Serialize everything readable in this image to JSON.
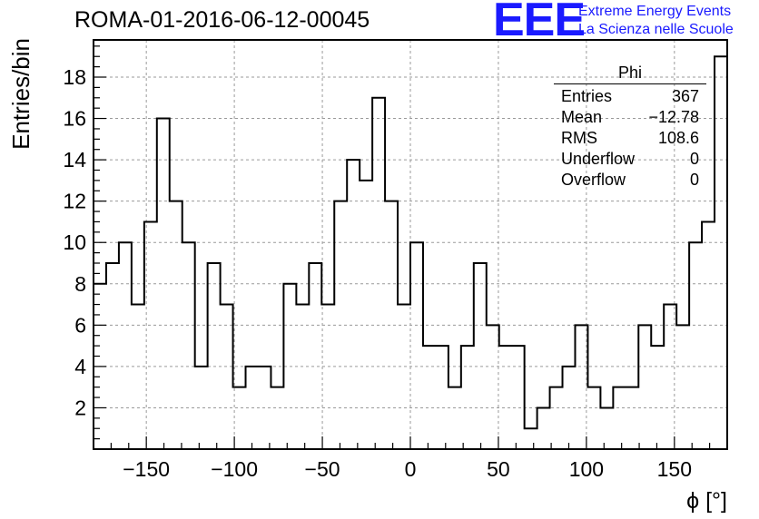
{
  "header": {
    "title": "ROMA-01-2016-06-12-00045",
    "logo": "EEE",
    "logo_line1": "Extreme Energy Events",
    "logo_line2": "La Scienza nelle Scuole"
  },
  "stats": {
    "title": "Phi",
    "rows": [
      {
        "label": "Entries",
        "value": "367"
      },
      {
        "label": "Mean",
        "value": "−12.78"
      },
      {
        "label": "RMS",
        "value": "108.6"
      },
      {
        "label": "Underflow",
        "value": "0"
      },
      {
        "label": "Overflow",
        "value": "0"
      }
    ]
  },
  "chart_data": {
    "type": "histogram",
    "title": "ROMA-01-2016-06-12-00045",
    "xlabel": "ϕ [°]",
    "ylabel": "Entries/bin",
    "xlim": [
      -180,
      180
    ],
    "ylim": [
      0,
      19.8
    ],
    "grid": true,
    "bin_width": 7.2,
    "bin_edges_start": -180,
    "values": [
      8,
      9,
      10,
      7,
      11,
      16,
      12,
      10,
      4,
      9,
      7,
      3,
      4,
      4,
      3,
      8,
      7,
      9,
      7,
      12,
      14,
      13,
      17,
      12,
      7,
      10,
      5,
      5,
      3,
      5,
      9,
      6,
      5,
      5,
      1,
      2,
      3,
      4,
      6,
      3,
      2,
      3,
      3,
      6,
      5,
      7,
      6,
      10,
      11,
      19
    ],
    "xticks": [
      -150,
      -100,
      -50,
      0,
      50,
      100,
      150
    ],
    "xtick_labels": [
      "−150",
      "−100",
      "−50",
      "0",
      "50",
      "100",
      "150"
    ],
    "yticks": [
      2,
      4,
      6,
      8,
      10,
      12,
      14,
      16,
      18
    ],
    "ytick_labels": [
      "2",
      "4",
      "6",
      "8",
      "10",
      "12",
      "14",
      "16",
      "18"
    ]
  }
}
